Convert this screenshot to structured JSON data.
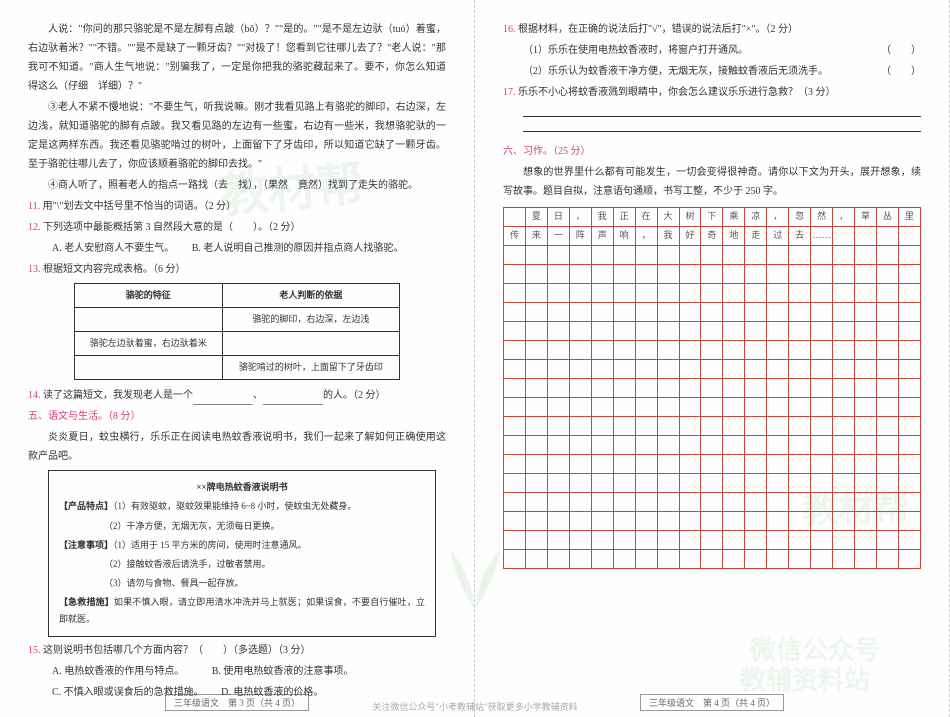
{
  "colors": {
    "accent": "#d93a7a",
    "blue": "#3a7ad9",
    "grid": "#c9463a",
    "text": "#333"
  },
  "leftPage": {
    "story": {
      "p1": "人说：\"你问的那只骆驼是不是左脚有点跛（bǒ）？\"\"是的。\"\"是不是左边驮（tuó）着蜜，右边驮着米？\"\"不错。\"\"是不是缺了一颗牙齿？\"\"对极了！您看到它往哪儿去了？\"老人说：\"那我可不知道。\"商人生气地说：\"别骗我了，一定是你把我的骆驼藏起来了。要不，你怎么知道得这么（仔细　详细）？\"",
      "p2": "③老人不紧不慢地说：\"不要生气，听我说嘛。刚才我看见路上有骆驼的脚印，右边深，左边浅，就知道骆驼的脚有点跛。我又看见路的左边有一些蜜，右边有一些米，我想骆驼驮的一定是这两样东西。我还看见骆驼啃过的树叶，上面留下了牙齿印，所以知道它缺了一颗牙齿。至于骆驼往哪儿去了，你应该顺着骆驼的脚印去找。\"",
      "p3": "④商人听了，照着老人的指点一路找（去　找），（果然　竟然）找到了走失的骆驼。"
    },
    "q11": {
      "num": "11.",
      "text": "用\"\\\"划去文中括号里不恰当的词语。（2 分）"
    },
    "q12": {
      "num": "12.",
      "text": "下列选项中最能概括第 3 自然段大意的是（　　）。（2 分）",
      "optA": "A. 老人安慰商人不要生气。",
      "optB": "B. 老人说明自己推测的原因并指点商人找骆驼。"
    },
    "q13": {
      "num": "13.",
      "text": "根据短文内容完成表格。（6 分）",
      "th1": "骆驼的特征",
      "th2": "老人判断的依据",
      "r1c2": "骆驼的脚印，右边深，左边浅",
      "r2c1": "骆驼左边驮着蜜，右边驮着米",
      "r3c2": "骆驼啃过的树叶，上面留下了牙齿印"
    },
    "q14": {
      "num": "14.",
      "pre": "读了这篇短文，我发现老人是一个",
      "post": "的人。（2 分）"
    },
    "sec5": {
      "title": "五、语文与生活。（8 分）",
      "intro": "炎炎夏日，蚊虫横行，乐乐正在阅读电热蚊香液说明书，我们一起来了解如何正确使用这款产品吧。"
    },
    "box": {
      "title": "××牌电热蚊香液说明书",
      "feat_label": "【产品特点】",
      "feat1": "（1）有效驱蚊，驱蚊效果能维持 6~8 小时，使蚊虫无处藏身。",
      "feat2": "（2）干净方便，无烟无灰，无须每日更换。",
      "note_label": "【注意事项】",
      "note1": "（1）适用于 15 平方米的房间，使用时注意通风。",
      "note2": "（2）接触蚊香液后请洗手，过敏者禁用。",
      "note3": "（3）请勿与食物、餐具一起存放。",
      "em_label": "【急救措施】",
      "em1": "如果不慎入眼，请立即用清水冲洗并马上就医；如果误食，不要自行催吐，立即就医。"
    },
    "q15": {
      "num": "15.",
      "text": "这则说明书包括哪几个方面内容？（　　）（多选题）（3 分）",
      "optA": "A. 电热蚊香液的作用与特点。",
      "optB": "B. 使用电热蚊香液的注意事项。",
      "optC": "C. 不慎入眼或误食后的急救措施。",
      "optD": "D. 电热蚊香液的价格。"
    },
    "footer": "三年级语文　第 3 页（共 4 页）"
  },
  "rightPage": {
    "q16": {
      "num": "16.",
      "text": "根据材料，在正确的说法后打\"√\"，错误的说法后打\"×\"。（2 分）",
      "s1": "（1）乐乐在使用电热蚊香液时，将窗户打开通风。",
      "s2": "（2）乐乐认为蚊香液干净方便，无烟无灰，接触蚊香液后无须洗手。"
    },
    "q17": {
      "num": "17.",
      "text": "乐乐不小心将蚊香液溅到眼睛中，你会怎么建议乐乐进行急救？（3 分）"
    },
    "sec6": {
      "title": "六、习作。（25 分）",
      "prompt": "想象的世界里什么都有可能发生，一切会变得很神奇。请你以下文为开头，展开想象，续写故事。题目自拟，注意语句通顺，书写工整，不少于 250 字。"
    },
    "prefill": {
      "row1": [
        "",
        "夏",
        "日",
        "，",
        "我",
        "正",
        "在",
        "大",
        "树",
        "下",
        "乘",
        "凉",
        "，",
        "忽",
        "然",
        "，",
        "草",
        "丛",
        "里"
      ],
      "row2": [
        "传",
        "来",
        "一",
        "阵",
        "声",
        "响",
        "，",
        "我",
        "好",
        "奇",
        "地",
        "走",
        "过",
        "去",
        "……",
        "",
        "",
        "",
        ""
      ]
    },
    "grid_cols": 19,
    "grid_empty_rows": 17,
    "footer": "三年级语文　第 4 页（共 4 页）"
  },
  "watermarks": {
    "w1": "教材帮",
    "w2": "教材帮",
    "w3a": "微信公众号",
    "w3b": "教辅资料站"
  },
  "bottomNote": "关注微信公众号\"小考教辅站\"获取更多小学教辅资料"
}
